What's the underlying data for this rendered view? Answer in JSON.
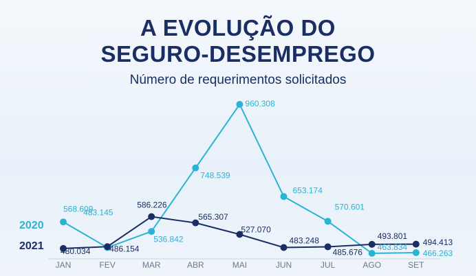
{
  "chart_data": {
    "type": "line",
    "title": "A EVOLUÇÃO DO SEGURO-DESEMPREGO",
    "subtitle": "Número de requerimentos solicitados",
    "categories": [
      "JAN",
      "FEV",
      "MAR",
      "ABR",
      "MAI",
      "JUN",
      "JUL",
      "AGO",
      "SET"
    ],
    "series": [
      {
        "name": "2020",
        "color": "#2bb3d6",
        "values": [
          568609,
          483145,
          536842,
          748539,
          960308,
          653174,
          570601,
          463834,
          466263
        ],
        "value_labels": [
          "568.609",
          "483.145",
          "536.842",
          "748.539",
          "960.308",
          "653.174",
          "570.601",
          "463.834",
          "466.263"
        ]
      },
      {
        "name": "2021",
        "color": "#1a2e63",
        "values": [
          480034,
          486154,
          586226,
          565307,
          527070,
          483248,
          485676,
          493801,
          494413
        ],
        "value_labels": [
          "480.034",
          "486.154",
          "586.226",
          "565.307",
          "527.070",
          "483.248",
          "485.676",
          "493.801",
          "494.413"
        ]
      }
    ]
  }
}
